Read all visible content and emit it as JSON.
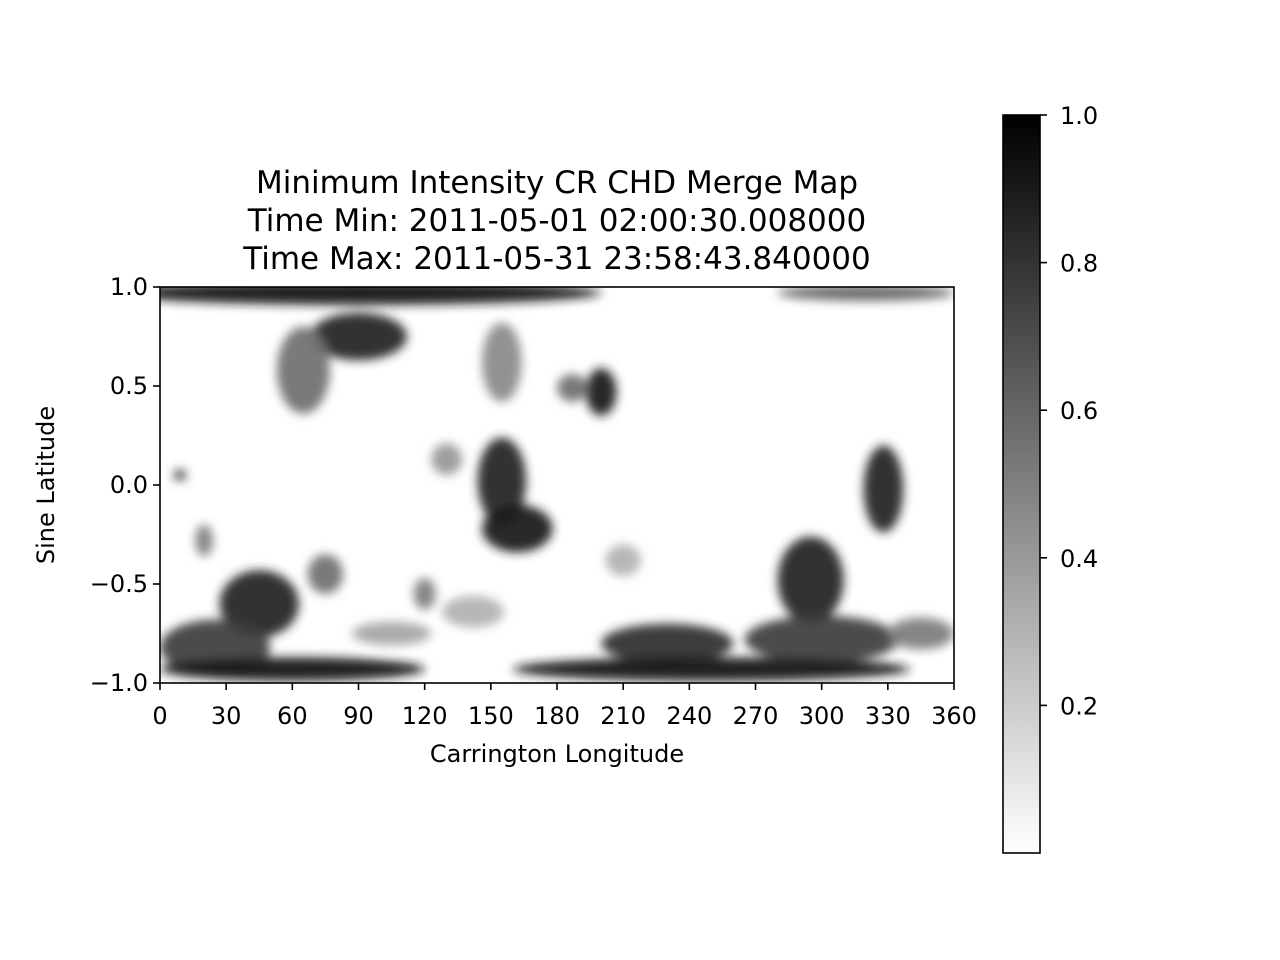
{
  "chart_data": {
    "type": "heatmap",
    "title": [
      "Minimum Intensity CR CHD Merge Map",
      "Time Min: 2011-05-01 02:00:30.008000",
      "Time Max: 2011-05-31 23:58:43.840000"
    ],
    "xlabel": "Carrington Longitude",
    "ylabel": "Sine Latitude",
    "xlim": [
      0,
      360
    ],
    "ylim": [
      -1.0,
      1.0
    ],
    "x_ticks": [
      0,
      30,
      60,
      90,
      120,
      150,
      180,
      210,
      240,
      270,
      300,
      330,
      360
    ],
    "x_tick_labels": [
      "0",
      "30",
      "60",
      "90",
      "120",
      "150",
      "180",
      "210",
      "240",
      "270",
      "300",
      "330",
      "360"
    ],
    "y_ticks": [
      1.0,
      0.5,
      0.0,
      -0.5,
      -1.0
    ],
    "y_tick_labels": [
      "1.0",
      "0.5",
      "0.0",
      "−0.5",
      "−1.0"
    ],
    "colormap": "Greys",
    "colorbar": {
      "range": [
        0.0,
        1.0
      ],
      "ticks": [
        0.2,
        0.4,
        0.6,
        0.8,
        1.0
      ],
      "tick_labels": [
        "0.2",
        "0.4",
        "0.6",
        "0.8",
        "1.0"
      ],
      "position": "right"
    },
    "grid": false,
    "regions": [
      {
        "lon": 90,
        "sinlat": 0.97,
        "rx": 110,
        "ry": 0.06,
        "value": 0.92
      },
      {
        "lon": 90,
        "sinlat": 0.75,
        "rx": 22,
        "ry": 0.12,
        "value": 0.85
      },
      {
        "lon": 65,
        "sinlat": 0.58,
        "rx": 12,
        "ry": 0.22,
        "value": 0.55
      },
      {
        "lon": 155,
        "sinlat": 0.62,
        "rx": 9,
        "ry": 0.2,
        "value": 0.45
      },
      {
        "lon": 200,
        "sinlat": 0.47,
        "rx": 7,
        "ry": 0.12,
        "value": 0.88
      },
      {
        "lon": 187,
        "sinlat": 0.49,
        "rx": 7,
        "ry": 0.07,
        "value": 0.55
      },
      {
        "lon": 130,
        "sinlat": 0.13,
        "rx": 7,
        "ry": 0.08,
        "value": 0.4
      },
      {
        "lon": 155,
        "sinlat": 0.02,
        "rx": 11,
        "ry": 0.22,
        "value": 0.85
      },
      {
        "lon": 162,
        "sinlat": -0.22,
        "rx": 16,
        "ry": 0.12,
        "value": 0.88
      },
      {
        "lon": 9,
        "sinlat": 0.05,
        "rx": 3,
        "ry": 0.03,
        "value": 0.7
      },
      {
        "lon": 20,
        "sinlat": -0.28,
        "rx": 4,
        "ry": 0.08,
        "value": 0.5
      },
      {
        "lon": 45,
        "sinlat": -0.6,
        "rx": 18,
        "ry": 0.17,
        "value": 0.85
      },
      {
        "lon": 25,
        "sinlat": -0.82,
        "rx": 25,
        "ry": 0.14,
        "value": 0.75
      },
      {
        "lon": 75,
        "sinlat": -0.45,
        "rx": 8,
        "ry": 0.1,
        "value": 0.55
      },
      {
        "lon": 120,
        "sinlat": -0.55,
        "rx": 5,
        "ry": 0.08,
        "value": 0.5
      },
      {
        "lon": 105,
        "sinlat": -0.75,
        "rx": 18,
        "ry": 0.06,
        "value": 0.35
      },
      {
        "lon": 142,
        "sinlat": -0.64,
        "rx": 14,
        "ry": 0.08,
        "value": 0.3
      },
      {
        "lon": 210,
        "sinlat": -0.38,
        "rx": 8,
        "ry": 0.08,
        "value": 0.3
      },
      {
        "lon": 230,
        "sinlat": -0.8,
        "rx": 30,
        "ry": 0.1,
        "value": 0.8
      },
      {
        "lon": 295,
        "sinlat": -0.48,
        "rx": 15,
        "ry": 0.22,
        "value": 0.85
      },
      {
        "lon": 300,
        "sinlat": -0.78,
        "rx": 35,
        "ry": 0.12,
        "value": 0.75
      },
      {
        "lon": 328,
        "sinlat": -0.02,
        "rx": 9,
        "ry": 0.22,
        "value": 0.85
      },
      {
        "lon": 345,
        "sinlat": -0.75,
        "rx": 15,
        "ry": 0.08,
        "value": 0.5
      },
      {
        "lon": 250,
        "sinlat": -0.93,
        "rx": 90,
        "ry": 0.06,
        "value": 0.92
      },
      {
        "lon": 60,
        "sinlat": -0.93,
        "rx": 60,
        "ry": 0.06,
        "value": 0.9
      },
      {
        "lon": 320,
        "sinlat": 0.97,
        "rx": 40,
        "ry": 0.04,
        "value": 0.6
      }
    ]
  }
}
